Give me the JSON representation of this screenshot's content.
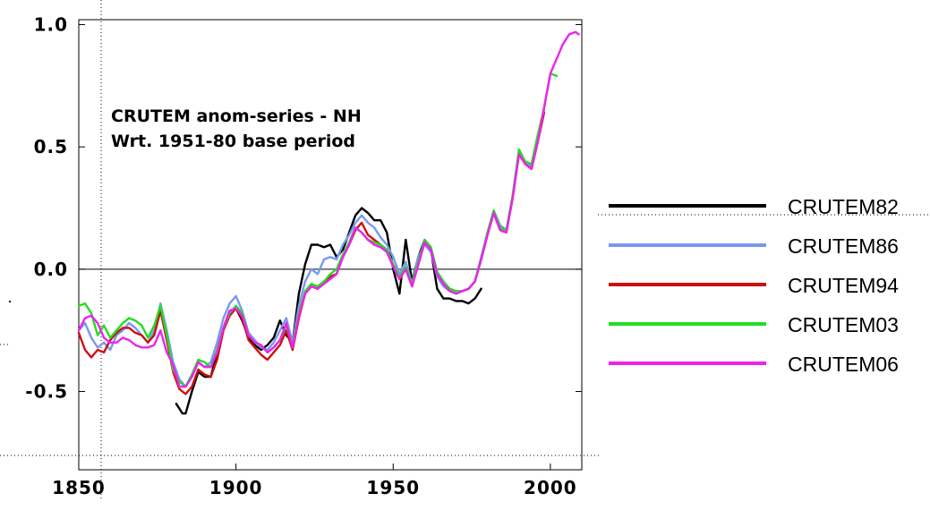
{
  "chart_data": {
    "type": "line",
    "annotation": [
      "CRUTEM anom-series - NH",
      "Wrt. 1951-80 base period"
    ],
    "xlabel": "",
    "ylabel": "",
    "xlim": [
      1850,
      2010
    ],
    "ylim": [
      -0.82,
      1.02
    ],
    "x_ticks": [
      1850,
      1900,
      1950,
      2000
    ],
    "x_tick_labels": [
      "1850",
      "1900",
      "1950",
      "2000"
    ],
    "y_ticks": [
      1.0,
      0.5,
      0.0,
      -0.5
    ],
    "y_tick_labels": [
      "1.0",
      "0.5",
      "0.0",
      "-0.5"
    ],
    "zero_line": true,
    "legend_position": "right",
    "series": [
      {
        "name": "CRUTEM82",
        "color": "#000000",
        "x": [
          1881,
          1883,
          1884,
          1886,
          1888,
          1890,
          1892,
          1894,
          1896,
          1898,
          1900,
          1902,
          1904,
          1906,
          1908,
          1910,
          1912,
          1914,
          1916,
          1918,
          1920,
          1922,
          1924,
          1926,
          1928,
          1930,
          1932,
          1934,
          1936,
          1938,
          1940,
          1942,
          1944,
          1946,
          1948,
          1950,
          1952,
          1954,
          1956,
          1958,
          1960,
          1962,
          1964,
          1966,
          1968,
          1970,
          1972,
          1974,
          1976,
          1978
        ],
        "values": [
          -0.55,
          -0.59,
          -0.59,
          -0.5,
          -0.42,
          -0.44,
          -0.44,
          -0.34,
          -0.24,
          -0.17,
          -0.16,
          -0.21,
          -0.28,
          -0.31,
          -0.33,
          -0.31,
          -0.28,
          -0.21,
          -0.27,
          -0.3,
          -0.1,
          0.02,
          0.1,
          0.1,
          0.09,
          0.1,
          0.05,
          0.08,
          0.15,
          0.22,
          0.25,
          0.23,
          0.2,
          0.2,
          0.15,
          0.0,
          -0.1,
          0.12,
          -0.05,
          0.05,
          0.12,
          0.08,
          -0.08,
          -0.12,
          -0.12,
          -0.13,
          -0.13,
          -0.14,
          -0.12,
          -0.08
        ]
      },
      {
        "name": "CRUTEM86",
        "color": "#7799ee",
        "x": [
          1850,
          1852,
          1854,
          1856,
          1858,
          1860,
          1862,
          1864,
          1866,
          1868,
          1870,
          1872,
          1874,
          1876,
          1878,
          1880,
          1882,
          1884,
          1886,
          1888,
          1890,
          1892,
          1894,
          1896,
          1898,
          1900,
          1902,
          1904,
          1906,
          1908,
          1910,
          1912,
          1914,
          1916,
          1918,
          1920,
          1922,
          1924,
          1926,
          1928,
          1930,
          1932,
          1934,
          1936,
          1938,
          1940,
          1942,
          1944,
          1946,
          1948,
          1950,
          1952,
          1954,
          1956,
          1958,
          1960,
          1962,
          1964,
          1966,
          1968,
          1970,
          1972,
          1974,
          1976,
          1978,
          1980,
          1982,
          1984,
          1986,
          1988,
          1990,
          1992,
          1994,
          1996,
          1998
        ],
        "values": [
          -0.25,
          -0.22,
          -0.28,
          -0.32,
          -0.3,
          -0.33,
          -0.27,
          -0.25,
          -0.22,
          -0.24,
          -0.27,
          -0.3,
          -0.25,
          -0.14,
          -0.25,
          -0.38,
          -0.45,
          -0.48,
          -0.44,
          -0.38,
          -0.4,
          -0.38,
          -0.3,
          -0.2,
          -0.14,
          -0.11,
          -0.17,
          -0.26,
          -0.29,
          -0.32,
          -0.33,
          -0.3,
          -0.25,
          -0.2,
          -0.3,
          -0.15,
          -0.05,
          0.0,
          -0.02,
          0.04,
          0.05,
          0.04,
          0.1,
          0.14,
          0.19,
          0.22,
          0.19,
          0.17,
          0.13,
          0.1,
          0.05,
          -0.02,
          0.03,
          -0.06,
          0.05,
          0.1,
          0.07,
          -0.03,
          -0.07,
          -0.09,
          -0.1,
          -0.09,
          -0.08,
          -0.05,
          0.05,
          0.15,
          0.24,
          0.18,
          0.16,
          0.3,
          0.48,
          0.44,
          0.42,
          0.52,
          0.65
        ]
      },
      {
        "name": "CRUTEM94",
        "color": "#cc1111",
        "x": [
          1850,
          1852,
          1854,
          1856,
          1858,
          1860,
          1862,
          1864,
          1866,
          1868,
          1870,
          1872,
          1874,
          1876,
          1878,
          1880,
          1882,
          1884,
          1886,
          1888,
          1890,
          1892,
          1894,
          1896,
          1898,
          1900,
          1902,
          1904,
          1906,
          1908,
          1910,
          1912,
          1914,
          1916,
          1918,
          1920,
          1922,
          1924,
          1926,
          1928,
          1930,
          1932,
          1934,
          1936,
          1938,
          1940,
          1942,
          1944,
          1946,
          1948,
          1950,
          1952,
          1954,
          1956,
          1958,
          1960,
          1962,
          1964,
          1966,
          1968,
          1970,
          1972,
          1974,
          1976,
          1978,
          1980,
          1982,
          1984,
          1986,
          1988,
          1990,
          1992,
          1994,
          1996,
          1998
        ],
        "values": [
          -0.26,
          -0.33,
          -0.36,
          -0.33,
          -0.34,
          -0.29,
          -0.26,
          -0.24,
          -0.24,
          -0.26,
          -0.27,
          -0.3,
          -0.27,
          -0.17,
          -0.29,
          -0.42,
          -0.49,
          -0.51,
          -0.48,
          -0.41,
          -0.43,
          -0.44,
          -0.37,
          -0.25,
          -0.19,
          -0.16,
          -0.2,
          -0.29,
          -0.32,
          -0.35,
          -0.37,
          -0.34,
          -0.31,
          -0.25,
          -0.33,
          -0.2,
          -0.1,
          -0.07,
          -0.08,
          -0.05,
          -0.03,
          -0.02,
          0.05,
          0.1,
          0.16,
          0.19,
          0.14,
          0.12,
          0.1,
          0.08,
          0.01,
          -0.04,
          0.0,
          -0.07,
          0.02,
          0.11,
          0.08,
          -0.02,
          -0.06,
          -0.08,
          -0.09,
          -0.09,
          -0.08,
          -0.05,
          0.04,
          0.14,
          0.23,
          0.16,
          0.15,
          0.29,
          0.47,
          0.43,
          0.41,
          0.52,
          0.64
        ]
      },
      {
        "name": "CRUTEM03",
        "color": "#22dd22",
        "x": [
          1850,
          1852,
          1854,
          1856,
          1858,
          1860,
          1862,
          1864,
          1866,
          1868,
          1870,
          1872,
          1874,
          1876,
          1878,
          1880,
          1882,
          1884,
          1886,
          1888,
          1890,
          1892,
          1894,
          1896,
          1898,
          1900,
          1902,
          1904,
          1906,
          1908,
          1910,
          1912,
          1914,
          1916,
          1918,
          1920,
          1922,
          1924,
          1926,
          1928,
          1930,
          1932,
          1934,
          1936,
          1938,
          1940,
          1942,
          1944,
          1946,
          1948,
          1950,
          1952,
          1954,
          1956,
          1958,
          1960,
          1962,
          1964,
          1966,
          1968,
          1970,
          1972,
          1974,
          1976,
          1978,
          1980,
          1982,
          1984,
          1986,
          1988,
          1990,
          1992,
          1994,
          1996,
          1998,
          2000,
          2002
        ],
        "values": [
          -0.15,
          -0.14,
          -0.18,
          -0.27,
          -0.23,
          -0.28,
          -0.25,
          -0.22,
          -0.2,
          -0.21,
          -0.23,
          -0.28,
          -0.23,
          -0.15,
          -0.27,
          -0.41,
          -0.46,
          -0.48,
          -0.43,
          -0.37,
          -0.38,
          -0.4,
          -0.33,
          -0.24,
          -0.18,
          -0.15,
          -0.18,
          -0.27,
          -0.3,
          -0.31,
          -0.34,
          -0.32,
          -0.29,
          -0.23,
          -0.31,
          -0.18,
          -0.09,
          -0.06,
          -0.07,
          -0.05,
          -0.02,
          0.0,
          0.06,
          0.11,
          0.17,
          0.15,
          0.12,
          0.11,
          0.1,
          0.08,
          0.02,
          -0.03,
          0.01,
          -0.06,
          0.03,
          0.12,
          0.09,
          -0.01,
          -0.05,
          -0.08,
          -0.09,
          -0.09,
          -0.08,
          -0.05,
          0.04,
          0.15,
          0.24,
          0.17,
          0.16,
          0.3,
          0.49,
          0.44,
          0.43,
          0.55,
          0.66,
          0.8,
          0.79
        ]
      },
      {
        "name": "CRUTEM06",
        "color": "#ee22ee",
        "x": [
          1850,
          1852,
          1854,
          1856,
          1858,
          1860,
          1862,
          1864,
          1866,
          1868,
          1870,
          1872,
          1874,
          1876,
          1878,
          1880,
          1882,
          1884,
          1886,
          1888,
          1890,
          1892,
          1894,
          1896,
          1898,
          1900,
          1902,
          1904,
          1906,
          1908,
          1910,
          1912,
          1914,
          1916,
          1918,
          1920,
          1922,
          1924,
          1926,
          1928,
          1930,
          1932,
          1934,
          1936,
          1938,
          1940,
          1942,
          1944,
          1946,
          1948,
          1950,
          1952,
          1954,
          1956,
          1958,
          1960,
          1962,
          1964,
          1966,
          1968,
          1970,
          1972,
          1974,
          1976,
          1978,
          1980,
          1982,
          1984,
          1986,
          1988,
          1990,
          1992,
          1994,
          1996,
          1998,
          2000,
          2002,
          2004,
          2006,
          2008,
          2009
        ],
        "values": [
          -0.25,
          -0.2,
          -0.19,
          -0.22,
          -0.28,
          -0.3,
          -0.3,
          -0.28,
          -0.29,
          -0.31,
          -0.32,
          -0.32,
          -0.31,
          -0.25,
          -0.34,
          -0.39,
          -0.48,
          -0.48,
          -0.44,
          -0.38,
          -0.4,
          -0.4,
          -0.34,
          -0.24,
          -0.17,
          -0.16,
          -0.19,
          -0.27,
          -0.3,
          -0.31,
          -0.34,
          -0.32,
          -0.29,
          -0.22,
          -0.32,
          -0.19,
          -0.1,
          -0.07,
          -0.08,
          -0.06,
          -0.04,
          -0.02,
          0.05,
          0.1,
          0.17,
          0.15,
          0.12,
          0.1,
          0.09,
          0.07,
          0.01,
          -0.04,
          0.0,
          -0.07,
          0.02,
          0.11,
          0.08,
          -0.02,
          -0.06,
          -0.09,
          -0.1,
          -0.09,
          -0.08,
          -0.05,
          0.04,
          0.14,
          0.23,
          0.16,
          0.15,
          0.29,
          0.47,
          0.43,
          0.41,
          0.52,
          0.66,
          0.8,
          0.86,
          0.92,
          0.96,
          0.97,
          0.96
        ]
      }
    ]
  }
}
